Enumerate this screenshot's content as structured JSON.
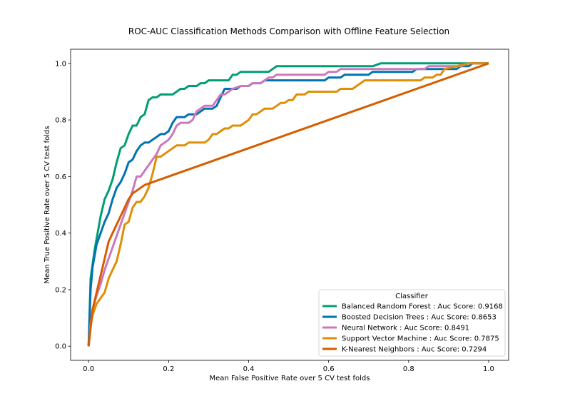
{
  "chart_data": {
    "type": "line",
    "title": "ROC-AUC Classification Methods Comparison with Offline Feature Selection",
    "xlabel": "Mean False Positive Rate over 5 CV test folds",
    "ylabel": "Mean True Positive Rate over 5 CV test folds",
    "xlim": [
      -0.045,
      1.05
    ],
    "ylim": [
      -0.05,
      1.05
    ],
    "xticks": [
      0.0,
      0.2,
      0.4,
      0.6,
      0.8,
      1.0
    ],
    "yticks": [
      0.0,
      0.2,
      0.4,
      0.6,
      0.8,
      1.0
    ],
    "xtick_labels": [
      "0.0",
      "0.2",
      "0.4",
      "0.6",
      "0.8",
      "1.0"
    ],
    "ytick_labels": [
      "0.0",
      "0.2",
      "0.4",
      "0.6",
      "0.8",
      "1.0"
    ],
    "grid": false,
    "legend": {
      "title": "Classifier",
      "placement": "lower-right"
    },
    "series": [
      {
        "name": "Balanced Random Forest : Auc Score: 0.9168",
        "color": "#029e73",
        "points": [
          [
            0.0,
            0.0
          ],
          [
            0.005,
            0.24
          ],
          [
            0.01,
            0.29
          ],
          [
            0.015,
            0.34
          ],
          [
            0.02,
            0.38
          ],
          [
            0.03,
            0.46
          ],
          [
            0.04,
            0.52
          ],
          [
            0.05,
            0.55
          ],
          [
            0.06,
            0.59
          ],
          [
            0.07,
            0.65
          ],
          [
            0.08,
            0.7
          ],
          [
            0.09,
            0.71
          ],
          [
            0.1,
            0.75
          ],
          [
            0.11,
            0.78
          ],
          [
            0.12,
            0.78
          ],
          [
            0.13,
            0.81
          ],
          [
            0.14,
            0.82
          ],
          [
            0.15,
            0.87
          ],
          [
            0.16,
            0.88
          ],
          [
            0.17,
            0.88
          ],
          [
            0.18,
            0.89
          ],
          [
            0.21,
            0.89
          ],
          [
            0.22,
            0.9
          ],
          [
            0.23,
            0.91
          ],
          [
            0.24,
            0.91
          ],
          [
            0.25,
            0.92
          ],
          [
            0.27,
            0.92
          ],
          [
            0.28,
            0.93
          ],
          [
            0.29,
            0.93
          ],
          [
            0.3,
            0.94
          ],
          [
            0.35,
            0.94
          ],
          [
            0.36,
            0.96
          ],
          [
            0.37,
            0.96
          ],
          [
            0.38,
            0.97
          ],
          [
            0.45,
            0.97
          ],
          [
            0.46,
            0.98
          ],
          [
            0.47,
            0.99
          ],
          [
            0.71,
            0.99
          ],
          [
            0.73,
            1.0
          ],
          [
            1.0,
            1.0
          ]
        ]
      },
      {
        "name": "Boosted Decision Trees : Auc Score: 0.8653",
        "color": "#0173b2",
        "points": [
          [
            0.0,
            0.0
          ],
          [
            0.005,
            0.2
          ],
          [
            0.01,
            0.28
          ],
          [
            0.02,
            0.36
          ],
          [
            0.03,
            0.4
          ],
          [
            0.04,
            0.44
          ],
          [
            0.05,
            0.47
          ],
          [
            0.06,
            0.52
          ],
          [
            0.07,
            0.56
          ],
          [
            0.08,
            0.58
          ],
          [
            0.09,
            0.61
          ],
          [
            0.1,
            0.65
          ],
          [
            0.11,
            0.66
          ],
          [
            0.12,
            0.69
          ],
          [
            0.13,
            0.71
          ],
          [
            0.14,
            0.72
          ],
          [
            0.15,
            0.72
          ],
          [
            0.16,
            0.73
          ],
          [
            0.17,
            0.74
          ],
          [
            0.18,
            0.75
          ],
          [
            0.19,
            0.75
          ],
          [
            0.2,
            0.76
          ],
          [
            0.21,
            0.79
          ],
          [
            0.22,
            0.81
          ],
          [
            0.24,
            0.81
          ],
          [
            0.25,
            0.82
          ],
          [
            0.27,
            0.82
          ],
          [
            0.28,
            0.83
          ],
          [
            0.29,
            0.84
          ],
          [
            0.31,
            0.84
          ],
          [
            0.32,
            0.85
          ],
          [
            0.33,
            0.88
          ],
          [
            0.34,
            0.91
          ],
          [
            0.37,
            0.91
          ],
          [
            0.38,
            0.92
          ],
          [
            0.4,
            0.92
          ],
          [
            0.41,
            0.93
          ],
          [
            0.43,
            0.93
          ],
          [
            0.44,
            0.94
          ],
          [
            0.59,
            0.94
          ],
          [
            0.6,
            0.95
          ],
          [
            0.63,
            0.95
          ],
          [
            0.64,
            0.96
          ],
          [
            0.7,
            0.96
          ],
          [
            0.71,
            0.97
          ],
          [
            0.81,
            0.97
          ],
          [
            0.82,
            0.98
          ],
          [
            0.92,
            0.98
          ],
          [
            0.93,
            0.99
          ],
          [
            0.95,
            0.99
          ],
          [
            0.96,
            1.0
          ],
          [
            1.0,
            1.0
          ]
        ]
      },
      {
        "name": "Neural Network : Auc Score: 0.8491",
        "color": "#cc78bc",
        "points": [
          [
            0.0,
            0.0
          ],
          [
            0.005,
            0.08
          ],
          [
            0.01,
            0.13
          ],
          [
            0.02,
            0.18
          ],
          [
            0.03,
            0.22
          ],
          [
            0.04,
            0.27
          ],
          [
            0.05,
            0.31
          ],
          [
            0.06,
            0.35
          ],
          [
            0.07,
            0.39
          ],
          [
            0.08,
            0.43
          ],
          [
            0.09,
            0.47
          ],
          [
            0.1,
            0.51
          ],
          [
            0.11,
            0.55
          ],
          [
            0.12,
            0.6
          ],
          [
            0.13,
            0.6
          ],
          [
            0.14,
            0.62
          ],
          [
            0.15,
            0.64
          ],
          [
            0.16,
            0.66
          ],
          [
            0.17,
            0.68
          ],
          [
            0.18,
            0.71
          ],
          [
            0.19,
            0.72
          ],
          [
            0.2,
            0.73
          ],
          [
            0.21,
            0.75
          ],
          [
            0.22,
            0.78
          ],
          [
            0.23,
            0.79
          ],
          [
            0.25,
            0.79
          ],
          [
            0.26,
            0.8
          ],
          [
            0.27,
            0.83
          ],
          [
            0.28,
            0.84
          ],
          [
            0.29,
            0.85
          ],
          [
            0.31,
            0.85
          ],
          [
            0.32,
            0.87
          ],
          [
            0.33,
            0.89
          ],
          [
            0.34,
            0.89
          ],
          [
            0.35,
            0.9
          ],
          [
            0.36,
            0.91
          ],
          [
            0.38,
            0.92
          ],
          [
            0.4,
            0.92
          ],
          [
            0.41,
            0.93
          ],
          [
            0.43,
            0.93
          ],
          [
            0.44,
            0.94
          ],
          [
            0.45,
            0.95
          ],
          [
            0.46,
            0.95
          ],
          [
            0.47,
            0.96
          ],
          [
            0.59,
            0.96
          ],
          [
            0.6,
            0.97
          ],
          [
            0.62,
            0.97
          ],
          [
            0.63,
            0.98
          ],
          [
            0.84,
            0.98
          ],
          [
            0.85,
            0.99
          ],
          [
            0.93,
            0.99
          ],
          [
            0.95,
            1.0
          ],
          [
            1.0,
            1.0
          ]
        ]
      },
      {
        "name": "Support Vector Machine : Auc Score: 0.7875",
        "color": "#de8f05",
        "points": [
          [
            0.0,
            0.0
          ],
          [
            0.005,
            0.07
          ],
          [
            0.01,
            0.11
          ],
          [
            0.02,
            0.15
          ],
          [
            0.03,
            0.17
          ],
          [
            0.04,
            0.19
          ],
          [
            0.05,
            0.24
          ],
          [
            0.06,
            0.27
          ],
          [
            0.07,
            0.3
          ],
          [
            0.08,
            0.36
          ],
          [
            0.09,
            0.43
          ],
          [
            0.1,
            0.44
          ],
          [
            0.11,
            0.49
          ],
          [
            0.12,
            0.51
          ],
          [
            0.13,
            0.51
          ],
          [
            0.14,
            0.53
          ],
          [
            0.15,
            0.56
          ],
          [
            0.16,
            0.61
          ],
          [
            0.17,
            0.67
          ],
          [
            0.18,
            0.67
          ],
          [
            0.19,
            0.68
          ],
          [
            0.2,
            0.69
          ],
          [
            0.21,
            0.7
          ],
          [
            0.22,
            0.71
          ],
          [
            0.24,
            0.71
          ],
          [
            0.25,
            0.72
          ],
          [
            0.29,
            0.72
          ],
          [
            0.3,
            0.73
          ],
          [
            0.31,
            0.75
          ],
          [
            0.32,
            0.75
          ],
          [
            0.33,
            0.76
          ],
          [
            0.34,
            0.77
          ],
          [
            0.35,
            0.77
          ],
          [
            0.36,
            0.78
          ],
          [
            0.38,
            0.78
          ],
          [
            0.39,
            0.79
          ],
          [
            0.4,
            0.8
          ],
          [
            0.41,
            0.82
          ],
          [
            0.42,
            0.82
          ],
          [
            0.43,
            0.83
          ],
          [
            0.44,
            0.84
          ],
          [
            0.46,
            0.84
          ],
          [
            0.47,
            0.85
          ],
          [
            0.48,
            0.86
          ],
          [
            0.49,
            0.86
          ],
          [
            0.5,
            0.87
          ],
          [
            0.51,
            0.87
          ],
          [
            0.52,
            0.89
          ],
          [
            0.54,
            0.89
          ],
          [
            0.55,
            0.9
          ],
          [
            0.62,
            0.9
          ],
          [
            0.63,
            0.91
          ],
          [
            0.66,
            0.91
          ],
          [
            0.67,
            0.92
          ],
          [
            0.68,
            0.93
          ],
          [
            0.69,
            0.94
          ],
          [
            0.83,
            0.94
          ],
          [
            0.84,
            0.95
          ],
          [
            0.86,
            0.95
          ],
          [
            0.87,
            0.96
          ],
          [
            0.88,
            0.96
          ],
          [
            0.89,
            0.98
          ],
          [
            0.92,
            0.99
          ],
          [
            0.95,
            1.0
          ],
          [
            1.0,
            1.0
          ]
        ]
      },
      {
        "name": "K-Nearest Neighbors : Auc Score: 0.7294",
        "color": "#d55e00",
        "points": [
          [
            0.0,
            0.0
          ],
          [
            0.01,
            0.13
          ],
          [
            0.02,
            0.19
          ],
          [
            0.03,
            0.25
          ],
          [
            0.04,
            0.31
          ],
          [
            0.05,
            0.37
          ],
          [
            0.06,
            0.4
          ],
          [
            0.07,
            0.43
          ],
          [
            0.08,
            0.46
          ],
          [
            0.09,
            0.49
          ],
          [
            0.1,
            0.52
          ],
          [
            0.11,
            0.54
          ],
          [
            0.12,
            0.55
          ],
          [
            0.13,
            0.56
          ],
          [
            0.14,
            0.57
          ],
          [
            0.16,
            0.58
          ],
          [
            1.0,
            1.0
          ]
        ]
      }
    ]
  }
}
